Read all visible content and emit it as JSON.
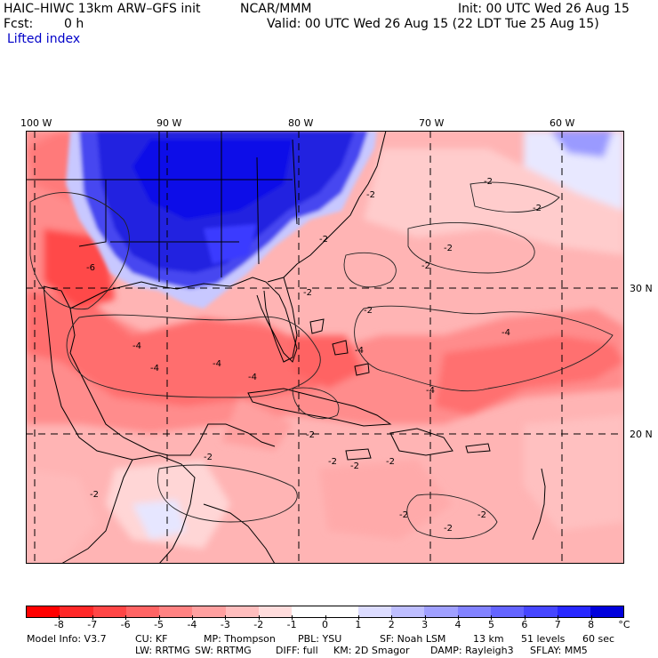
{
  "header": {
    "model": "HAIC–HIWC 13km ARW–GFS init",
    "org": "NCAR/MMM",
    "init": "Init: 00 UTC Wed 26 Aug 15",
    "fcst_label": "Fcst:",
    "fcst_value": "0 h",
    "valid": "Valid: 00 UTC Wed 26 Aug 15 (22 LDT Tue 25 Aug 15)",
    "field": "Lifted index"
  },
  "map": {
    "longitude_labels": [
      "100 W",
      "90 W",
      "80 W",
      "70 W",
      "60 W"
    ],
    "latitude_labels": [
      "30 N",
      "20 N"
    ],
    "contour_labels": [
      "-6",
      "-4",
      "-4",
      "-4",
      "-4",
      "-4",
      "-4",
      "-4",
      "-2",
      "-2",
      "-2",
      "-2",
      "-2",
      "-2",
      "-2",
      "-2",
      "-2",
      "-2",
      "-2",
      "-2",
      "-2",
      "-2",
      "-2",
      "-2",
      "-2"
    ],
    "colors": {
      "strong_negative": "#ff0000",
      "negative": "#ff6e6e",
      "weak_negative": "#ffc8c8",
      "neutral": "#ffffff",
      "positive": "#b4b4ff",
      "strong_positive": "#0000e6"
    }
  },
  "colorbar": {
    "colors": [
      "#ff0000",
      "#ff2828",
      "#ff4646",
      "#ff6464",
      "#ff8282",
      "#ffa0a0",
      "#ffbebe",
      "#ffdcdc",
      "#ffffff",
      "#ffffff",
      "#dcdcff",
      "#bebeff",
      "#a0a0ff",
      "#8282ff",
      "#6464ff",
      "#4646ff",
      "#2828ff",
      "#0000dc"
    ],
    "ticks": [
      "-8",
      "-7",
      "-6",
      "-5",
      "-4",
      "-3",
      "-2",
      "-1",
      "0",
      "1",
      "2",
      "3",
      "4",
      "5",
      "6",
      "7",
      "8"
    ],
    "unit": "°C"
  },
  "info": {
    "line1": {
      "model_info": "Model Info: V3.7",
      "cu": "CU: KF",
      "mp": "MP: Thompson",
      "pbl": "PBL: YSU",
      "sf": "SF: Noah LSM",
      "res": "13 km",
      "levels": "51 levels",
      "dt": "60 sec"
    },
    "line2": {
      "lw": "LW: RRTMG",
      "sw": "SW: RRTMG",
      "diff": "DIFF: full",
      "km": "KM: 2D Smagor",
      "damp": "DAMP: Rayleigh3",
      "sflay": "SFLAY: MM5"
    }
  }
}
